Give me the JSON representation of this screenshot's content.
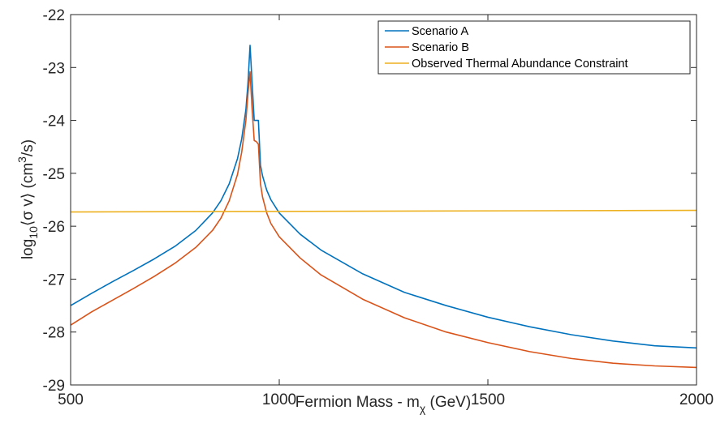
{
  "chart_data": {
    "type": "line",
    "title": "",
    "xlabel": "Fermion Mass - m",
    "xlabel_sub": "χ",
    "xlabel_unit": " (GeV)",
    "ylabel_prefix": "log",
    "ylabel_sub": "10",
    "ylabel_mid": "⟨σ v⟩ (cm",
    "ylabel_sup": "3",
    "ylabel_suffix": "/s)",
    "xlim": [
      500,
      2000
    ],
    "ylim": [
      -29,
      -22
    ],
    "xticks": [
      500,
      1000,
      1500,
      2000
    ],
    "xtick_labels": [
      "500",
      "1000",
      "1500",
      "2000"
    ],
    "yticks": [
      -29,
      -28,
      -27,
      -26,
      -25,
      -24,
      -23,
      -22
    ],
    "ytick_labels": [
      "-29",
      "-28",
      "-27",
      "-26",
      "-25",
      "-24",
      "-23",
      "-22"
    ],
    "grid": false,
    "legend_position": "top-right",
    "series": [
      {
        "name": "Scenario A",
        "color": "#0072BD",
        "x": [
          500,
          550,
          600,
          650,
          700,
          750,
          800,
          840,
          860,
          880,
          900,
          910,
          920,
          925,
          930,
          935,
          940,
          945,
          950,
          955,
          960,
          970,
          980,
          1000,
          1050,
          1100,
          1200,
          1300,
          1400,
          1500,
          1600,
          1700,
          1800,
          1900,
          2000
        ],
        "y": [
          -27.5,
          -27.27,
          -27.05,
          -26.84,
          -26.62,
          -26.38,
          -26.08,
          -25.75,
          -25.52,
          -25.2,
          -24.72,
          -24.35,
          -23.8,
          -23.3,
          -22.58,
          -23.3,
          -24.0,
          -24.0,
          -24.0,
          -24.85,
          -25.05,
          -25.32,
          -25.5,
          -25.75,
          -26.15,
          -26.45,
          -26.9,
          -27.25,
          -27.5,
          -27.72,
          -27.9,
          -28.05,
          -28.17,
          -28.26,
          -28.3
        ]
      },
      {
        "name": "Scenario B",
        "color": "#D95319",
        "x": [
          500,
          550,
          600,
          650,
          700,
          750,
          800,
          840,
          860,
          880,
          900,
          910,
          920,
          925,
          930,
          935,
          940,
          945,
          950,
          955,
          960,
          970,
          980,
          1000,
          1050,
          1100,
          1200,
          1300,
          1400,
          1500,
          1600,
          1700,
          1800,
          1900,
          2000
        ],
        "y": [
          -27.87,
          -27.62,
          -27.4,
          -27.18,
          -26.95,
          -26.7,
          -26.4,
          -26.08,
          -25.85,
          -25.52,
          -25.02,
          -24.6,
          -24.0,
          -23.5,
          -23.08,
          -23.8,
          -24.38,
          -24.4,
          -24.45,
          -25.2,
          -25.45,
          -25.75,
          -25.95,
          -26.2,
          -26.6,
          -26.92,
          -27.38,
          -27.73,
          -28.0,
          -28.2,
          -28.37,
          -28.5,
          -28.59,
          -28.64,
          -28.67
        ]
      },
      {
        "name": "Observed Thermal Abundance Constraint",
        "color": "#EDB120",
        "x": [
          500,
          2000
        ],
        "y": [
          -25.73,
          -25.7
        ]
      }
    ]
  }
}
